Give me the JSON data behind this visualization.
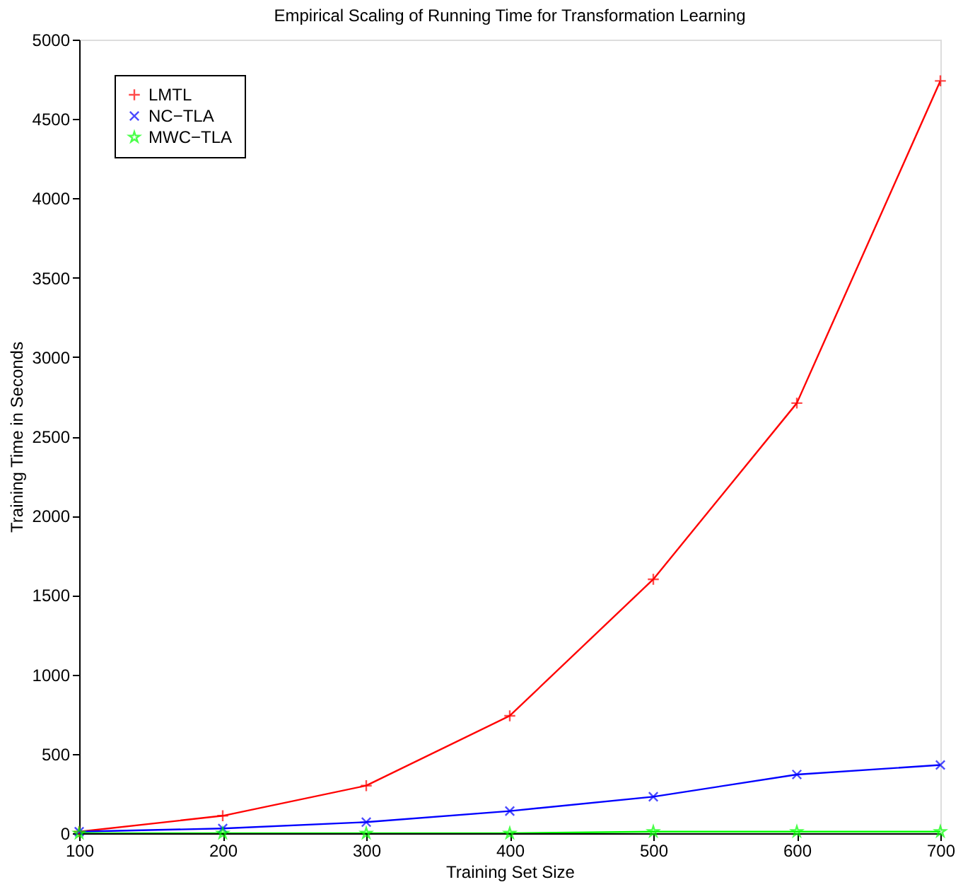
{
  "chart_data": {
    "type": "line",
    "title": "Empirical Scaling of Running Time for Transformation Learning",
    "xlabel": "Training Set Size",
    "ylabel": "Training Time in Seconds",
    "x": [
      100,
      200,
      300,
      400,
      500,
      600,
      700
    ],
    "series": [
      {
        "name": "LMTL",
        "color": "#ff0000",
        "marker": "plus",
        "values": [
          10,
          110,
          300,
          740,
          1600,
          2710,
          4740
        ]
      },
      {
        "name": "NC−TLA",
        "color": "#0000ff",
        "marker": "cross",
        "values": [
          10,
          30,
          70,
          140,
          230,
          370,
          430
        ]
      },
      {
        "name": "MWC−TLA",
        "color": "#00ff00",
        "marker": "star",
        "values": [
          0,
          0,
          0,
          0,
          10,
          10,
          10
        ]
      }
    ],
    "xlim": [
      100,
      700
    ],
    "xticks": [
      100,
      200,
      300,
      400,
      500,
      600,
      700
    ],
    "ylim": [
      0,
      5000
    ],
    "yticks": [
      0,
      500,
      1000,
      1500,
      2000,
      2500,
      3000,
      3500,
      4000,
      4500,
      5000
    ],
    "grid": false,
    "legend": "top left",
    "line_style": "solid"
  }
}
